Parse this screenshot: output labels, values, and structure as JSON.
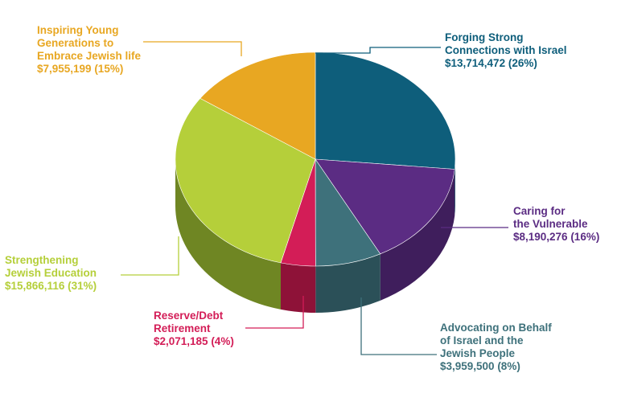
{
  "chart_data": {
    "type": "pie",
    "title": "",
    "slices": [
      {
        "name_lines": [
          "Forging Strong",
          "Connections with Israel"
        ],
        "amount": "$13,714,472",
        "pct": "(26%)",
        "value": 13714472,
        "color": "#0e5e7b",
        "side": "#0b4a61"
      },
      {
        "name_lines": [
          "Caring for",
          "the Vulnerable"
        ],
        "amount": "$8,190,276",
        "pct": "(16%)",
        "value": 8190276,
        "color": "#5b2c83",
        "side": "#3f1e5c"
      },
      {
        "name_lines": [
          "Advocating on Behalf",
          "of Israel and the",
          "Jewish People"
        ],
        "amount": "$3,959,500",
        "pct": "(8%)",
        "value": 3959500,
        "color": "#3e717b",
        "side": "#2b5058"
      },
      {
        "name_lines": [
          "Reserve/Debt",
          "Retirement"
        ],
        "amount": "$2,071,185",
        "pct": "(4%)",
        "value": 2071185,
        "color": "#d31d57",
        "side": "#8e1238"
      },
      {
        "name_lines": [
          "Strengthening",
          "Jewish Education"
        ],
        "amount": "$15,866,116",
        "pct": "(31%)",
        "value": 15866116,
        "color": "#b5cf3a",
        "side": "#6f8623"
      },
      {
        "name_lines": [
          "Inspiring Young",
          "Generations to",
          "Embrace Jewish life"
        ],
        "amount": "$7,955,199",
        "pct": "(15%)",
        "value": 7955199,
        "color": "#e8a722",
        "side": "#a57416"
      }
    ]
  }
}
